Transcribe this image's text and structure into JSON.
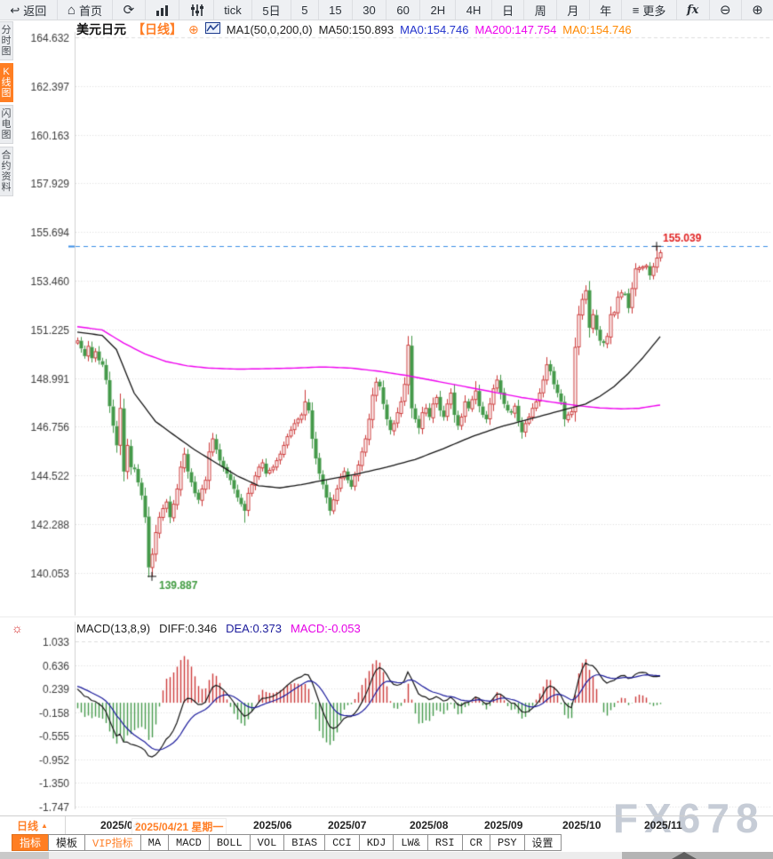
{
  "toolbar": {
    "buttons": [
      {
        "name": "back",
        "glyph": "↩",
        "label": "返回"
      },
      {
        "name": "home",
        "glyph": "⌂",
        "label": "首页"
      },
      {
        "name": "refresh",
        "glyph": "⟳"
      },
      {
        "name": "bar-chart"
      },
      {
        "name": "sliders"
      },
      {
        "name": "tick",
        "label": "tick"
      },
      {
        "name": "5d",
        "label": "5日"
      },
      {
        "name": "m5",
        "label": "5"
      },
      {
        "name": "m15",
        "label": "15"
      },
      {
        "name": "m30",
        "label": "30"
      },
      {
        "name": "m60",
        "label": "60"
      },
      {
        "name": "h2",
        "label": "2H"
      },
      {
        "name": "h4",
        "label": "4H"
      },
      {
        "name": "day",
        "label": "日"
      },
      {
        "name": "week",
        "label": "周"
      },
      {
        "name": "month",
        "label": "月"
      },
      {
        "name": "year",
        "label": "年"
      },
      {
        "name": "more",
        "glyph": "≡",
        "label": "更多"
      },
      {
        "name": "fx",
        "label": "fx"
      },
      {
        "name": "zoom-out",
        "glyph": "⊖"
      },
      {
        "name": "zoom-in",
        "glyph": "⊕"
      }
    ]
  },
  "sidebar": {
    "tabs": [
      {
        "label": "分时图",
        "active": false
      },
      {
        "label": "K线图",
        "active": true
      },
      {
        "label": "闪电图",
        "active": false
      },
      {
        "label": "合约资料",
        "active": false
      }
    ]
  },
  "chart_header": {
    "symbol": "美元日元",
    "period_tag": "【日线】",
    "add_glyph": "⊕",
    "formula": "MA1(50,0,200,0)",
    "values": [
      {
        "label": "MA50:150.893"
      },
      {
        "label": "MA0:154.746"
      },
      {
        "label": "MA200:147.754"
      },
      {
        "label": "MA0:154.746"
      }
    ]
  },
  "macd_header": {
    "settings_glyph": "☼",
    "formula": "MACD(13,8,9)",
    "diff": "DIFF:0.346",
    "dea": "DEA:0.373",
    "macd": "MACD:-0.053"
  },
  "x_axis": {
    "period_label": "日线",
    "period_arrow": "▲",
    "months": [
      {
        "label": "2025/04",
        "day": 7
      },
      {
        "label": "2025/06",
        "day": 50
      },
      {
        "label": "2025/07",
        "day": 71
      },
      {
        "label": "2025/08",
        "day": 94
      },
      {
        "label": "2025/09",
        "day": 115
      },
      {
        "label": "2025/10",
        "day": 137
      },
      {
        "label": "2025/11",
        "day": 160
      }
    ],
    "selected": {
      "label": "2025/04/21 星期一",
      "day": 21
    }
  },
  "bottom_bar": {
    "tabs": [
      {
        "label": "指标",
        "style": "active"
      },
      {
        "label": "模板",
        "style": ""
      },
      {
        "label": "VIP指标",
        "style": "vip"
      },
      {
        "label": "MA",
        "style": ""
      },
      {
        "label": "MACD",
        "style": ""
      },
      {
        "label": "BOLL",
        "style": ""
      },
      {
        "label": "VOL",
        "style": ""
      },
      {
        "label": "BIAS",
        "style": ""
      },
      {
        "label": "CCI",
        "style": ""
      },
      {
        "label": "KDJ",
        "style": ""
      },
      {
        "label": "LW&",
        "style": ""
      },
      {
        "label": "RSI",
        "style": ""
      },
      {
        "label": "CR",
        "style": ""
      },
      {
        "label": "PSY",
        "style": ""
      },
      {
        "label": "设置",
        "style": ""
      }
    ]
  },
  "watermark": {
    "text": "FX678"
  },
  "colors": {
    "up": "#cc3a3a",
    "down": "#44994a",
    "ma50": "#141414",
    "ma200": "#ee00ee",
    "dif": "#151515",
    "dea": "#1c1c9c",
    "price_line": "#3a8ee6",
    "accent": "#ff7e22",
    "grid": "#dadada",
    "axis_text": "#3c3c3c",
    "high_label": "#e02222",
    "low_label": "#3f9a3f"
  },
  "chart_data": {
    "type": "candlestick",
    "symbol": "USD/JPY daily",
    "visible_days": 165,
    "main_axis_labels": [
      "164.632",
      "162.397",
      "160.163",
      "157.929",
      "155.694",
      "153.460",
      "151.225",
      "148.991",
      "146.756",
      "144.522",
      "142.288",
      "140.053"
    ],
    "macd_axis_labels": [
      "1.033",
      "0.636",
      "0.239",
      "-0.158",
      "-0.555",
      "-0.952",
      "-1.350",
      "-1.747"
    ],
    "high_marker": {
      "day": 163,
      "value": 155.039,
      "label": "155.039"
    },
    "low_marker": {
      "day": 21,
      "value": 139.887,
      "label": "139.887"
    },
    "price_line_value": 155.039,
    "macd_params": [
      13,
      8,
      9
    ],
    "warmup_closes": [
      148.1,
      148.5,
      148.9,
      149.3,
      149.1,
      148.7,
      149.1,
      149.5,
      149.9,
      150.3,
      150.6,
      150.3,
      150.0,
      150.3,
      150.6,
      150.9,
      150.7,
      151.0,
      150.9,
      150.6
    ],
    "closes": [
      150.7,
      150.35,
      150.0,
      150.45,
      149.9,
      150.2,
      149.8,
      149.6,
      148.9,
      147.7,
      146.8,
      145.9,
      147.6,
      144.7,
      145.9,
      144.9,
      144.8,
      144.2,
      143.6,
      142.6,
      140.3,
      140.9,
      141.9,
      142.6,
      143.0,
      143.3,
      142.6,
      143.2,
      143.9,
      144.9,
      145.5,
      144.7,
      144.2,
      143.7,
      143.4,
      143.9,
      144.3,
      145.6,
      146.2,
      145.7,
      145.2,
      144.9,
      144.6,
      144.3,
      143.9,
      143.5,
      143.2,
      142.9,
      143.7,
      144.1,
      144.5,
      144.9,
      145.1,
      144.6,
      144.75,
      144.9,
      145.2,
      145.5,
      145.9,
      146.3,
      146.6,
      146.9,
      147.1,
      147.3,
      147.9,
      147.5,
      146.2,
      145.3,
      144.6,
      144.1,
      143.5,
      142.9,
      143.4,
      143.9,
      144.4,
      144.7,
      144.3,
      144.0,
      144.5,
      145.0,
      145.6,
      146.2,
      147.1,
      148.2,
      148.8,
      148.6,
      147.8,
      147.1,
      146.6,
      146.9,
      147.4,
      147.9,
      148.7,
      150.5,
      147.6,
      147.1,
      146.7,
      147.4,
      147.6,
      147.2,
      147.8,
      148.1,
      147.5,
      147.2,
      147.8,
      148.3,
      147.3,
      146.8,
      147.2,
      147.9,
      147.6,
      148.0,
      148.4,
      147.7,
      147.3,
      147.1,
      147.8,
      148.5,
      148.9,
      148.3,
      147.8,
      147.5,
      147.4,
      147.7,
      147.0,
      146.5,
      146.9,
      147.2,
      147.6,
      147.9,
      148.3,
      148.9,
      149.6,
      149.3,
      148.7,
      148.3,
      147.9,
      147.1,
      147.3,
      147.45,
      150.4,
      151.9,
      152.6,
      153.0,
      151.3,
      151.9,
      151.2,
      150.7,
      150.6,
      150.9,
      151.9,
      152.0,
      152.7,
      152.9,
      152.85,
      152.2,
      153.1,
      154.0,
      154.05,
      154.1,
      154.15,
      153.7,
      154.1,
      154.5,
      154.746
    ],
    "high_overrides": {
      "12": 148.28,
      "64": 148.45,
      "93": 150.92,
      "105": 148.52,
      "112": 148.85,
      "118": 149.12,
      "132": 149.95,
      "143": 153.25,
      "163": 155.039
    },
    "low_overrides": {
      "21": 139.887,
      "47": 142.35,
      "71": 142.68,
      "96": 146.42,
      "125": 146.21
    },
    "ma50_keyframes": [
      [
        0,
        151.1
      ],
      [
        7,
        150.95
      ],
      [
        11,
        150.3
      ],
      [
        16,
        148.3
      ],
      [
        22,
        147.0
      ],
      [
        27,
        146.4
      ],
      [
        33,
        145.7
      ],
      [
        39,
        145.1
      ],
      [
        45,
        144.5
      ],
      [
        51,
        144.05
      ],
      [
        57,
        143.95
      ],
      [
        63,
        144.1
      ],
      [
        71,
        144.35
      ],
      [
        79,
        144.6
      ],
      [
        87,
        144.9
      ],
      [
        95,
        145.25
      ],
      [
        103,
        145.75
      ],
      [
        111,
        146.3
      ],
      [
        119,
        146.75
      ],
      [
        127,
        147.1
      ],
      [
        135,
        147.45
      ],
      [
        143,
        147.8
      ],
      [
        147,
        148.15
      ],
      [
        151,
        148.6
      ],
      [
        155,
        149.2
      ],
      [
        159,
        149.9
      ],
      [
        164,
        150.893
      ]
    ],
    "ma200_keyframes": [
      [
        0,
        151.35
      ],
      [
        7,
        151.2
      ],
      [
        13,
        150.6
      ],
      [
        19,
        150.1
      ],
      [
        25,
        149.75
      ],
      [
        31,
        149.55
      ],
      [
        37,
        149.45
      ],
      [
        45,
        149.4
      ],
      [
        53,
        149.42
      ],
      [
        61,
        149.45
      ],
      [
        69,
        149.5
      ],
      [
        77,
        149.45
      ],
      [
        85,
        149.3
      ],
      [
        93,
        149.1
      ],
      [
        101,
        148.85
      ],
      [
        109,
        148.6
      ],
      [
        117,
        148.35
      ],
      [
        125,
        148.1
      ],
      [
        133,
        147.9
      ],
      [
        141,
        147.72
      ],
      [
        147,
        147.62
      ],
      [
        153,
        147.58
      ],
      [
        158,
        147.6
      ],
      [
        161,
        147.68
      ],
      [
        164,
        147.754
      ]
    ]
  }
}
